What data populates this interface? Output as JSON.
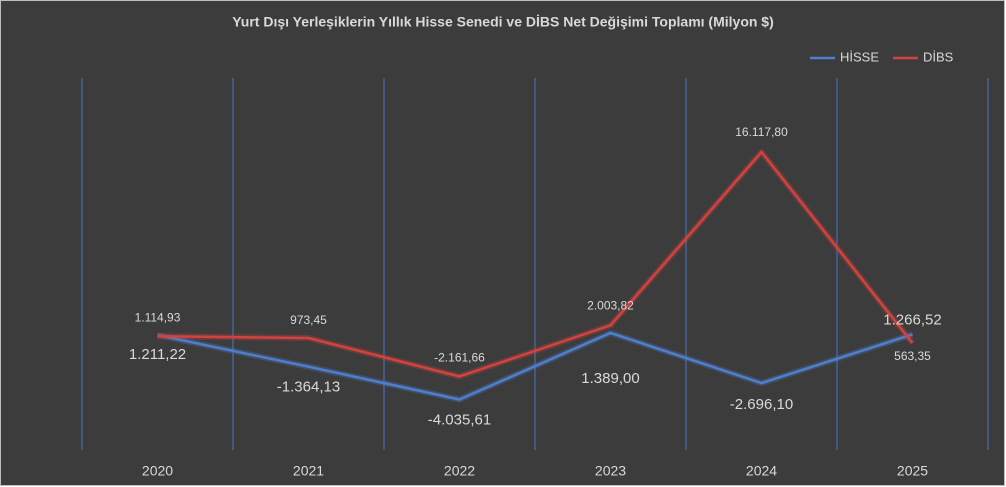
{
  "chart_data": {
    "type": "line",
    "title": "Yurt Dışı Yerleşiklerin Yıllık Hisse Senedi ve DİBS Net Değişimi Toplamı (Milyon $)",
    "categories": [
      "2020",
      "2021",
      "2022",
      "2023",
      "2024",
      "2025"
    ],
    "series": [
      {
        "name": "HİSSE",
        "color": "#4f7fcc",
        "values": [
          1211.22,
          -1364.13,
          -4035.61,
          1389.0,
          -2696.1,
          1266.52
        ],
        "value_labels": [
          "1.211,22",
          "-1.364,13",
          "-4.035,61",
          "1.389,00",
          "-2.696,10",
          "1.266,52"
        ]
      },
      {
        "name": "DİBS",
        "color": "#d2423f",
        "values": [
          1114.93,
          973.45,
          -2161.66,
          2003.82,
          16117.8,
          563.35
        ],
        "value_labels": [
          "1.114,93",
          "973,45",
          "-2.161,66",
          "2.003,82",
          "16.117,80",
          "563,35"
        ]
      }
    ],
    "legend": "top-right",
    "grid": true
  }
}
